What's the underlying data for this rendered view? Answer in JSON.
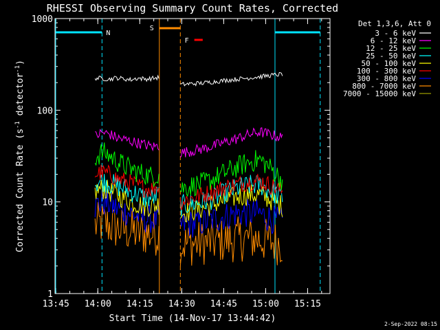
{
  "chart_data": {
    "type": "line",
    "title": "RHESSI Observing Summary Count Rates, Corrected",
    "xlabel": "Start Time (14-Nov-17 13:44:42)",
    "ylabel": "Corrected Count Rate (s⁻¹ detector⁻¹)",
    "ylabel_parts": [
      "Corrected Count Rate (s",
      "-1",
      " detector",
      "-1",
      ")"
    ],
    "y_scale": "log",
    "ylim": [
      1,
      1000
    ],
    "xlim": [
      "13:44:42",
      "15:23:00"
    ],
    "x_ticks": [
      "13:45",
      "14:00",
      "14:15",
      "14:30",
      "14:45",
      "15:00",
      "15:15"
    ],
    "y_ticks": [
      "1",
      "10",
      "100",
      "1000"
    ],
    "legend_header": "Det 1,3,6, Att 0",
    "legend_placement": "right",
    "timestamp": "2-Sep-2022 08:15",
    "markers": {
      "night": {
        "label": "N",
        "color": "#00e5ff",
        "intervals": [
          [
            "13:44:42",
            "14:01:30"
          ],
          [
            "15:03:20",
            "15:19:30"
          ]
        ]
      },
      "saa": {
        "label": "S",
        "color": "#ff8c00",
        "interval": [
          "14:22:00",
          "14:29:30"
        ]
      },
      "flare": {
        "label": "F",
        "color": "#ff0000",
        "interval": [
          "14:34:30",
          "14:37:30"
        ]
      },
      "attenuator_lines": {
        "color": "#ff8c00",
        "times": [
          "14:22:00",
          "14:29:30"
        ]
      }
    },
    "series": [
      {
        "name": "3 - 6 keV",
        "color": "#ffffff",
        "segments": [
          {
            "start": "13:59:00",
            "end": "14:22:00",
            "values": [
              225,
              222,
              218,
              226,
              220,
              215,
              224,
              219,
              222,
              228
            ]
          },
          {
            "start": "14:29:30",
            "end": "15:06:00",
            "values": [
              190,
              195,
              198,
              205,
              212,
              218,
              225,
              232,
              240,
              248
            ]
          }
        ]
      },
      {
        "name": "6 - 12 keV",
        "color": "#ff00ff",
        "segments": [
          {
            "start": "13:59:00",
            "end": "14:22:00",
            "values": [
              52,
              57,
              55,
              50,
              48,
              46,
              44,
              42,
              40,
              41
            ]
          },
          {
            "start": "14:29:30",
            "end": "15:06:00",
            "values": [
              34,
              36,
              38,
              41,
              45,
              49,
              54,
              58,
              54,
              50
            ]
          }
        ]
      },
      {
        "name": "12 - 25 keV",
        "color": "#00ff00",
        "segments": [
          {
            "start": "13:59:00",
            "end": "14:22:00",
            "values": [
              30,
              35,
              32,
              28,
              25,
              23,
              21,
              20,
              19,
              20
            ]
          },
          {
            "start": "14:29:30",
            "end": "15:06:00",
            "values": [
              14,
              15,
              16,
              18,
              21,
              24,
              27,
              29,
              23,
              17
            ]
          }
        ]
      },
      {
        "name": "25 - 50 keV",
        "color": "#00ffff",
        "segments": [
          {
            "start": "13:59:00",
            "end": "14:22:00",
            "values": [
              16,
              17,
              16,
              15,
              14,
              13,
              12,
              11,
              11,
              12
            ]
          },
          {
            "start": "14:29:30",
            "end": "15:06:00",
            "values": [
              9,
              9.5,
              10,
              11,
              12.5,
              14,
              15,
              15.5,
              13,
              11
            ]
          }
        ]
      },
      {
        "name": "50 - 100 keV",
        "color": "#ffff00",
        "segments": [
          {
            "start": "13:59:00",
            "end": "14:22:00",
            "values": [
              13,
              14,
              13,
              12,
              11,
              10,
              9.5,
              9,
              9,
              9.5
            ]
          },
          {
            "start": "14:29:30",
            "end": "15:06:00",
            "values": [
              7.5,
              8,
              8.5,
              9.5,
              10.5,
              11.5,
              12,
              12,
              10.5,
              9
            ]
          }
        ]
      },
      {
        "name": "100 - 300 keV",
        "color": "#ff0000",
        "segments": [
          {
            "start": "13:59:00",
            "end": "14:22:00",
            "values": [
              20,
              21,
              20,
              18,
              17,
              16,
              15,
              14,
              14,
              15
            ]
          },
          {
            "start": "14:29:30",
            "end": "15:06:00",
            "values": [
              10,
              11,
              12,
              13,
              14.5,
              15.5,
              16.5,
              17,
              15,
              13
            ]
          }
        ]
      },
      {
        "name": "300 - 800 keV",
        "color": "#0000ff",
        "segments": [
          {
            "start": "13:59:00",
            "end": "14:22:00",
            "values": [
              9,
              10,
              9.5,
              8.5,
              8,
              7.5,
              7,
              6.5,
              6.5,
              6.5
            ]
          },
          {
            "start": "14:29:30",
            "end": "15:06:00",
            "values": [
              5.5,
              5.8,
              6,
              6.5,
              7,
              7.5,
              7.5,
              7.5,
              6.5,
              6
            ]
          }
        ]
      },
      {
        "name": "800 - 7000 keV",
        "color": "#ff8c00",
        "segments": [
          {
            "start": "13:59:00",
            "end": "14:22:00",
            "values": [
              5.5,
              5.8,
              5.5,
              5.2,
              5,
              4.8,
              4.6,
              4.5,
              4.5,
              4.5
            ]
          },
          {
            "start": "14:29:30",
            "end": "15:06:00",
            "values": [
              3.5,
              3.5,
              3.6,
              3.7,
              3.8,
              3.9,
              4,
              3.9,
              3.7,
              3.5
            ]
          }
        ]
      },
      {
        "name": "7000 - 15000 keV",
        "color": "#999900",
        "segments": []
      }
    ]
  }
}
